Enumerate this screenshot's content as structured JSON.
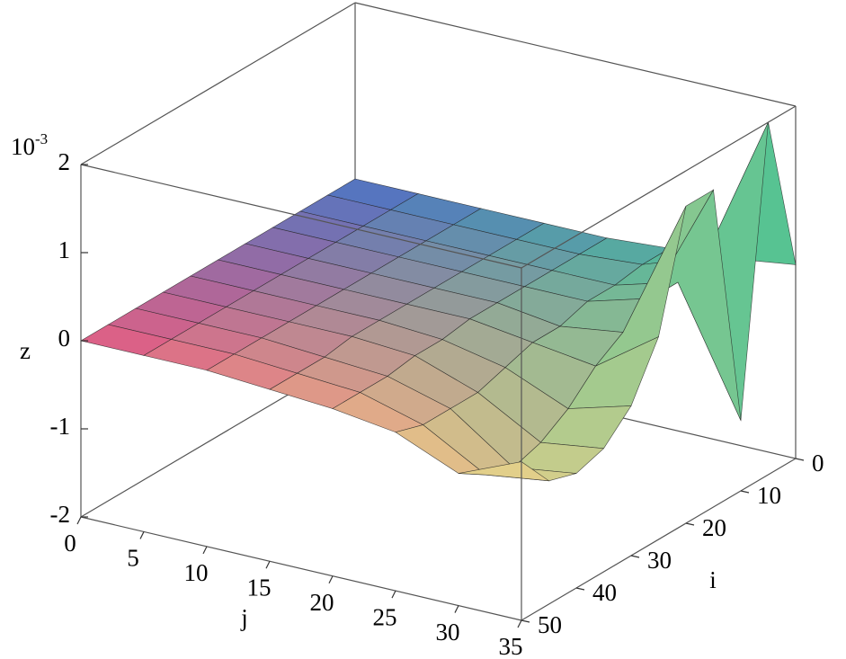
{
  "chart_data": {
    "type": "surface",
    "x_label": "j",
    "y_label": "i",
    "z_label": "z",
    "z_multiplier": {
      "base": "10",
      "exponent": "-3"
    },
    "i": [
      0,
      5,
      10,
      15,
      20,
      25,
      30,
      35,
      40,
      45,
      50
    ],
    "j": [
      0,
      5,
      10,
      15,
      20,
      25,
      30,
      35
    ],
    "z": [
      [
        0,
        0,
        0,
        0,
        0,
        0.05,
        0.1,
        0.2
      ],
      [
        0,
        0,
        0,
        0,
        0,
        0.05,
        0.3,
        2.0
      ],
      [
        0,
        0,
        0,
        0,
        0,
        0,
        0.2,
        -1.2
      ],
      [
        0,
        0,
        0,
        0,
        0,
        0,
        0.2,
        1.6
      ],
      [
        0,
        0,
        0,
        0,
        0,
        -0.1,
        0,
        1.6
      ],
      [
        0,
        0,
        0,
        0,
        0,
        -0.1,
        -0.2,
        0.3
      ],
      [
        0,
        0,
        0,
        0,
        -0.05,
        -0.2,
        -0.5,
        -0.3
      ],
      [
        0,
        0,
        0,
        0,
        -0.05,
        -0.3,
        -0.7,
        -0.6
      ],
      [
        0,
        0,
        0,
        -0.05,
        -0.1,
        -0.3,
        -0.8,
        -0.7
      ],
      [
        0,
        0,
        0,
        -0.05,
        -0.1,
        -0.3,
        -0.7,
        -0.6
      ],
      [
        0,
        0,
        0,
        -0.05,
        -0.1,
        -0.2,
        -0.5,
        -0.2
      ]
    ],
    "ilim": [
      0,
      50
    ],
    "jlim": [
      0,
      35
    ],
    "zlim": [
      -2,
      2
    ],
    "iticks": [
      0,
      10,
      20,
      30,
      40,
      50
    ],
    "jticks": [
      0,
      5,
      10,
      15,
      20,
      25,
      30,
      35
    ],
    "zticks": [
      -2,
      -1,
      0,
      1,
      2
    ],
    "corner_colors": [
      "#4f70c6",
      "#4fc98f",
      "#e25683",
      "#ead98a"
    ]
  }
}
